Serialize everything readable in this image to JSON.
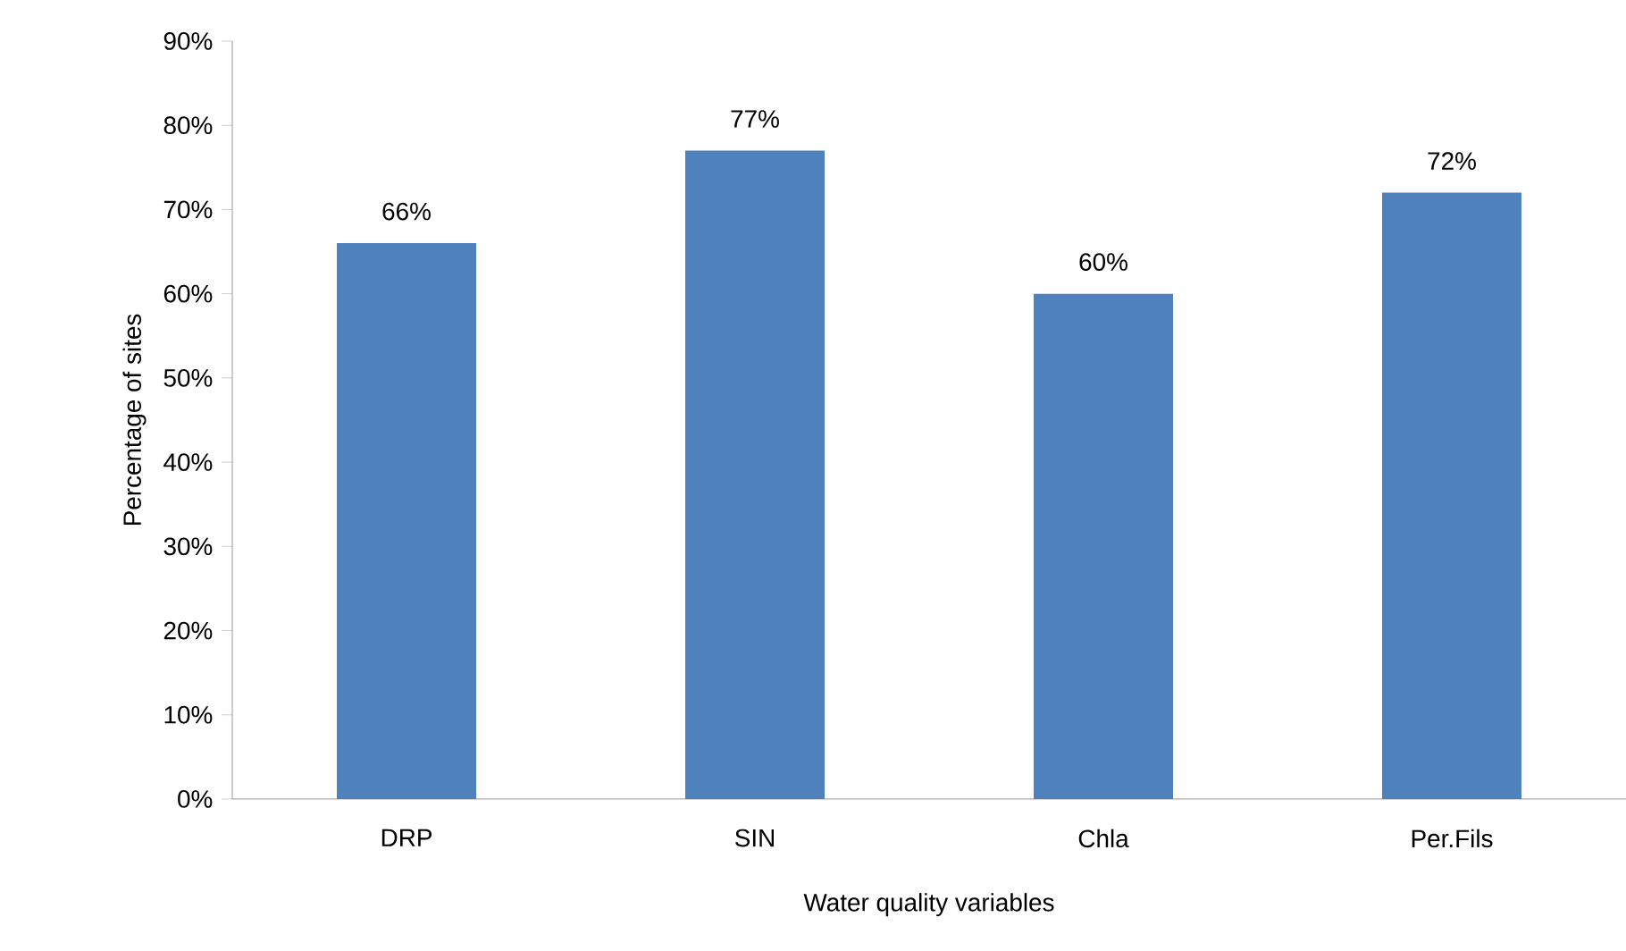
{
  "chart_data": {
    "type": "bar",
    "xlabel": "Water quality variables",
    "ylabel": "Percentage of sites",
    "categories": [
      "DRP",
      "SIN",
      "Chla",
      "Per.Fils"
    ],
    "values": [
      66,
      77,
      60,
      72
    ],
    "value_labels": [
      "66%",
      "77%",
      "60%",
      "72%"
    ],
    "color": "#4f81bd",
    "ylim": [
      0,
      90
    ],
    "yticks": [
      {
        "value": 0,
        "label": "0%"
      },
      {
        "value": 10,
        "label": "10%"
      },
      {
        "value": 20,
        "label": "20%"
      },
      {
        "value": 30,
        "label": "30%"
      },
      {
        "value": 40,
        "label": "40%"
      },
      {
        "value": 50,
        "label": "50%"
      },
      {
        "value": 60,
        "label": "60%"
      },
      {
        "value": 70,
        "label": "70%"
      },
      {
        "value": 80,
        "label": "80%"
      },
      {
        "value": 90,
        "label": "90%"
      }
    ],
    "grid": false
  }
}
